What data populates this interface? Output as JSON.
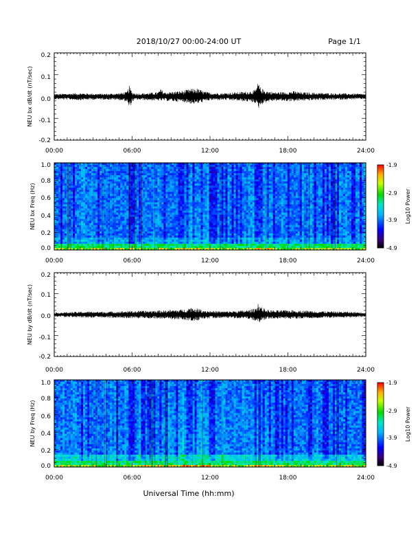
{
  "header": {
    "title": "2018/10/27  00:00-24:00 UT",
    "page": "Page 1/1"
  },
  "xlabel": "Universal Time (hh:mm)",
  "chart_data": [
    {
      "type": "line",
      "ylabel": "NEU bx dB/dt (nT/sec)",
      "xlim": [
        0,
        24
      ],
      "ylim": [
        -0.2,
        0.2
      ],
      "xticks": [
        "00:00",
        "06:00",
        "12:00",
        "18:00",
        "24:00"
      ],
      "yticks": [
        "0.2",
        "0.1",
        "0.0",
        "-0.1",
        "-0.2"
      ],
      "envelope": {
        "x": [
          0,
          1,
          2,
          3,
          4,
          5,
          5.6,
          5.8,
          6.0,
          6.3,
          7,
          8,
          8.2,
          8.5,
          9,
          10,
          10.5,
          11,
          11.5,
          12,
          13,
          14,
          15,
          15.5,
          15.7,
          15.9,
          16.2,
          16.5,
          17,
          18,
          18.5,
          19,
          20,
          21,
          22,
          23,
          24
        ],
        "upper": [
          0.012,
          0.014,
          0.016,
          0.014,
          0.013,
          0.016,
          0.022,
          0.05,
          0.02,
          0.015,
          0.016,
          0.02,
          0.035,
          0.02,
          0.022,
          0.028,
          0.035,
          0.038,
          0.025,
          0.018,
          0.016,
          0.02,
          0.024,
          0.03,
          0.065,
          0.04,
          0.03,
          0.025,
          0.02,
          0.022,
          0.025,
          0.02,
          0.018,
          0.016,
          0.015,
          0.014,
          0.012
        ],
        "lower": [
          -0.013,
          -0.015,
          -0.017,
          -0.015,
          -0.014,
          -0.017,
          -0.024,
          -0.06,
          -0.024,
          -0.016,
          -0.017,
          -0.02,
          -0.02,
          -0.02,
          -0.022,
          -0.026,
          -0.034,
          -0.035,
          -0.025,
          -0.018,
          -0.016,
          -0.02,
          -0.025,
          -0.03,
          -0.06,
          -0.04,
          -0.03,
          -0.024,
          -0.02,
          -0.022,
          -0.023,
          -0.02,
          -0.018,
          -0.016,
          -0.015,
          -0.014,
          -0.012
        ]
      }
    },
    {
      "type": "heatmap",
      "ylabel": "NEU bx Freq (Hz)",
      "xlim": [
        0,
        24
      ],
      "ylim": [
        0.0,
        1.0
      ],
      "xticks": [
        "00:00",
        "06:00",
        "12:00",
        "18:00",
        "24:00"
      ],
      "yticks": [
        "1.0",
        "0.8",
        "0.6",
        "0.4",
        "0.2",
        "0.0"
      ],
      "colorbar": {
        "label": "Log10 Power",
        "ticks": [
          "-1.9",
          "-2.9",
          "-3.9",
          "-4.9"
        ],
        "range": [
          -4.9,
          -1.9
        ]
      }
    },
    {
      "type": "line",
      "ylabel": "NEU by dB/dt (nT/sec)",
      "xlim": [
        0,
        24
      ],
      "ylim": [
        -0.2,
        0.2
      ],
      "xticks": [
        "00:00",
        "06:00",
        "12:00",
        "18:00",
        "24:00"
      ],
      "yticks": [
        "0.2",
        "0.1",
        "0.0",
        "-0.1",
        "-0.2"
      ],
      "envelope": {
        "x": [
          0,
          1,
          2,
          3,
          4,
          5,
          6,
          7,
          8,
          9,
          10,
          10.5,
          11,
          11.5,
          12,
          13,
          14,
          15,
          15.5,
          15.7,
          15.9,
          16.2,
          16.5,
          17,
          18,
          19,
          20,
          21,
          22,
          23,
          24
        ],
        "upper": [
          0.01,
          0.012,
          0.014,
          0.015,
          0.014,
          0.016,
          0.018,
          0.018,
          0.02,
          0.022,
          0.025,
          0.035,
          0.03,
          0.022,
          0.018,
          0.016,
          0.018,
          0.022,
          0.03,
          0.058,
          0.04,
          0.028,
          0.022,
          0.02,
          0.022,
          0.02,
          0.018,
          0.016,
          0.015,
          0.013,
          0.011
        ],
        "lower": [
          -0.01,
          -0.012,
          -0.014,
          -0.016,
          -0.014,
          -0.016,
          -0.018,
          -0.018,
          -0.02,
          -0.022,
          -0.025,
          -0.033,
          -0.03,
          -0.022,
          -0.018,
          -0.016,
          -0.018,
          -0.022,
          -0.03,
          -0.045,
          -0.035,
          -0.026,
          -0.022,
          -0.02,
          -0.022,
          -0.02,
          -0.018,
          -0.016,
          -0.015,
          -0.013,
          -0.011
        ]
      }
    },
    {
      "type": "heatmap",
      "ylabel": "NEU by Freq (Hz)",
      "xlim": [
        0,
        24
      ],
      "ylim": [
        0.0,
        1.0
      ],
      "xticks": [
        "00:00",
        "06:00",
        "12:00",
        "18:00",
        "24:00"
      ],
      "yticks": [
        "1.0",
        "0.8",
        "0.6",
        "0.4",
        "0.2",
        "0.0"
      ],
      "colorbar": {
        "label": "Log10 Power",
        "ticks": [
          "-1.9",
          "-2.9",
          "-3.9",
          "-4.9"
        ],
        "range": [
          -4.9,
          -1.9
        ]
      }
    }
  ]
}
